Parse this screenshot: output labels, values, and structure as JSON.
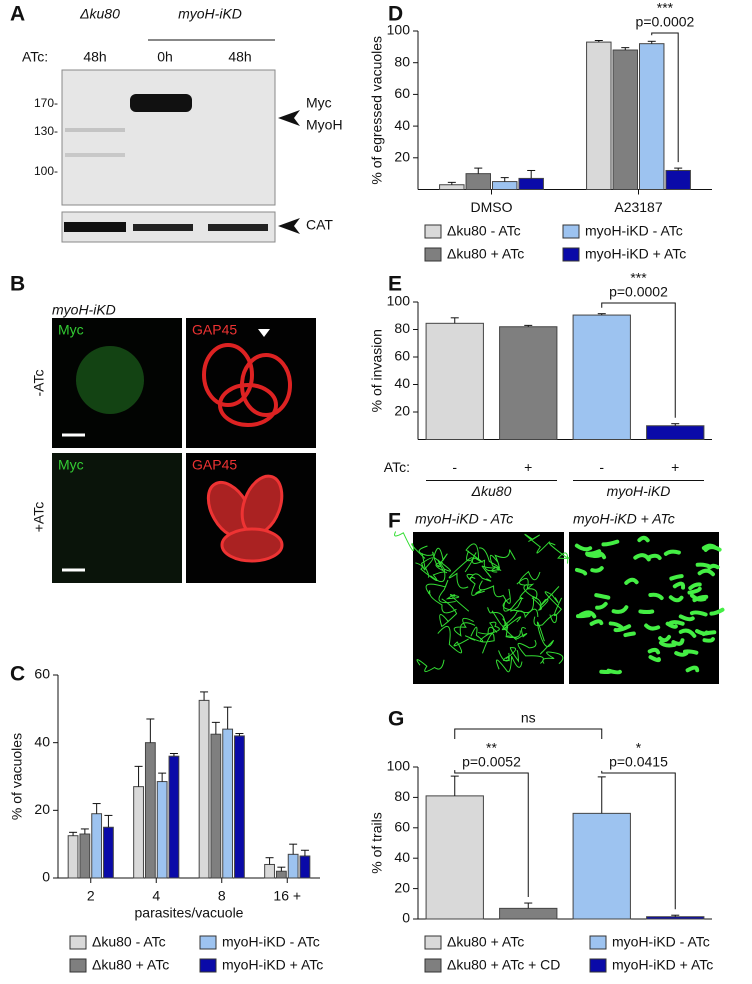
{
  "blot": {
    "panel": "A",
    "strains": [
      "Δku80",
      "myoH-iKD"
    ],
    "treatment_label": "ATc:",
    "lanes": [
      "48h",
      "0h",
      "48h"
    ],
    "markers": [
      "170-",
      "130-",
      "100-"
    ],
    "labels": [
      "Myc",
      "MyoH"
    ],
    "loading_label": "CAT"
  },
  "micrographs": {
    "panel": "B",
    "strain": "myoH-iKD",
    "channels": [
      "Myc",
      "GAP45"
    ],
    "conditions": [
      "-ATc",
      "+ATc"
    ]
  },
  "trail_images": {
    "panel": "F",
    "titles": [
      "myoH-iKD - ATc",
      "myoH-iKD + ATc"
    ]
  },
  "chart_data": [
    {
      "panel": "C",
      "type": "bar",
      "categories": [
        "2",
        "4",
        "8",
        "16 +"
      ],
      "xlabel": "parasites/vacuole",
      "ylabel": "% of vacuoles",
      "ylim": [
        0,
        60
      ],
      "yticks": [
        0,
        20,
        40,
        60
      ],
      "series": [
        {
          "name": "Δku80 - ATc",
          "color": "#d9d9d9",
          "values": [
            12.5,
            27,
            52.5,
            4
          ],
          "errors": [
            1,
            6,
            2.5,
            2
          ]
        },
        {
          "name": "Δku80 + ATc",
          "color": "#7f7f7f",
          "values": [
            13,
            40,
            42.5,
            2
          ],
          "errors": [
            1.5,
            7,
            3.5,
            1.2
          ]
        },
        {
          "name": "myoH-iKD - ATc",
          "color": "#9dc3f0",
          "values": [
            19,
            28.5,
            44,
            7
          ],
          "errors": [
            3,
            2.5,
            6.5,
            3
          ]
        },
        {
          "name": "myoH-iKD + ATc",
          "color": "#0a0aa8",
          "values": [
            15,
            36,
            42,
            6.5
          ],
          "errors": [
            3.5,
            0.8,
            0.7,
            1.7
          ]
        }
      ]
    },
    {
      "panel": "D",
      "type": "bar",
      "categories": [
        "DMSO",
        "A23187"
      ],
      "ylabel": "% of egressed vacuoles",
      "ylim": [
        0,
        100
      ],
      "yticks": [
        20,
        40,
        60,
        80,
        100
      ],
      "annotations": [
        "***",
        "p=0.0002"
      ],
      "series": [
        {
          "name": "Δku80 - ATc",
          "color": "#d9d9d9",
          "values": [
            3,
            93
          ],
          "errors": [
            1.5,
            1
          ]
        },
        {
          "name": "Δku80 + ATc",
          "color": "#7f7f7f",
          "values": [
            10,
            88
          ],
          "errors": [
            3.5,
            1.5
          ]
        },
        {
          "name": "myoH-iKD - ATc",
          "color": "#9dc3f0",
          "values": [
            5,
            92
          ],
          "errors": [
            2.5,
            1.5
          ]
        },
        {
          "name": "myoH-iKD + ATc",
          "color": "#0a0aa8",
          "values": [
            7,
            12
          ],
          "errors": [
            5,
            1.5
          ]
        }
      ]
    },
    {
      "panel": "E",
      "type": "singlebar",
      "category_title": "ATc:",
      "categories": [
        "-",
        "+",
        "-",
        "+"
      ],
      "groups": [
        "Δku80",
        "myoH-iKD"
      ],
      "ylabel": "% of invasion",
      "ylim": [
        0,
        100
      ],
      "yticks": [
        20,
        40,
        60,
        80,
        100
      ],
      "annotations": [
        "***",
        "p=0.0002"
      ],
      "values": [
        84.5,
        82,
        90.5,
        10
      ],
      "errors": [
        4,
        1,
        1,
        1.5
      ],
      "colors": [
        "#d9d9d9",
        "#7f7f7f",
        "#9dc3f0",
        "#0a0aa8"
      ]
    },
    {
      "panel": "G",
      "type": "singlebar",
      "ylabel": "% of trails",
      "ylim": [
        0,
        100
      ],
      "yticks": [
        0,
        20,
        40,
        60,
        80,
        100
      ],
      "annotations": [
        "ns",
        "**",
        "p=0.0052",
        "*",
        "p=0.0415"
      ],
      "legend": [
        "Δku80 + ATc",
        "Δku80 + ATc + CD",
        "myoH-iKD - ATc",
        "myoH-iKD + ATc"
      ],
      "values": [
        81,
        7,
        69.5,
        1.5
      ],
      "errors": [
        13,
        3.5,
        24,
        1
      ],
      "colors": [
        "#d9d9d9",
        "#7f7f7f",
        "#9dc3f0",
        "#0a0aa8"
      ]
    }
  ]
}
